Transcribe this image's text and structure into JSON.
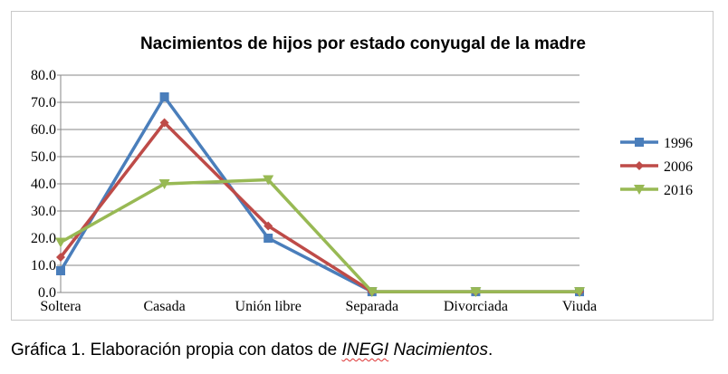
{
  "chart_data": {
    "type": "line",
    "title": "Nacimientos de hijos por estado conyugal de la madre",
    "xlabel": "",
    "ylabel": "",
    "categories": [
      "Soltera",
      "Casada",
      "Unión libre",
      "Separada",
      "Divorciada",
      "Viuda"
    ],
    "ylim": [
      0,
      80
    ],
    "yticks": [
      "0.0",
      "10.0",
      "20.0",
      "30.0",
      "40.0",
      "50.0",
      "60.0",
      "70.0",
      "80.0"
    ],
    "grid": true,
    "legend_position": "right",
    "series": [
      {
        "name": "1996",
        "color": "#4a7ebb",
        "marker": "square",
        "values": [
          8.0,
          72.0,
          20.0,
          0.3,
          0.3,
          0.3
        ]
      },
      {
        "name": "2006",
        "color": "#be4b48",
        "marker": "diamond",
        "values": [
          13.0,
          62.5,
          24.5,
          0.3,
          0.3,
          0.3
        ]
      },
      {
        "name": "2016",
        "color": "#98b954",
        "marker": "triangle-down",
        "values": [
          18.5,
          40.0,
          41.5,
          0.3,
          0.3,
          0.3
        ]
      }
    ]
  },
  "caption": {
    "prefix": "Gráfica 1. Elaboración propia con datos de ",
    "source_org": "INEGI",
    "source_rest": " Nacimientos",
    "suffix": "."
  }
}
